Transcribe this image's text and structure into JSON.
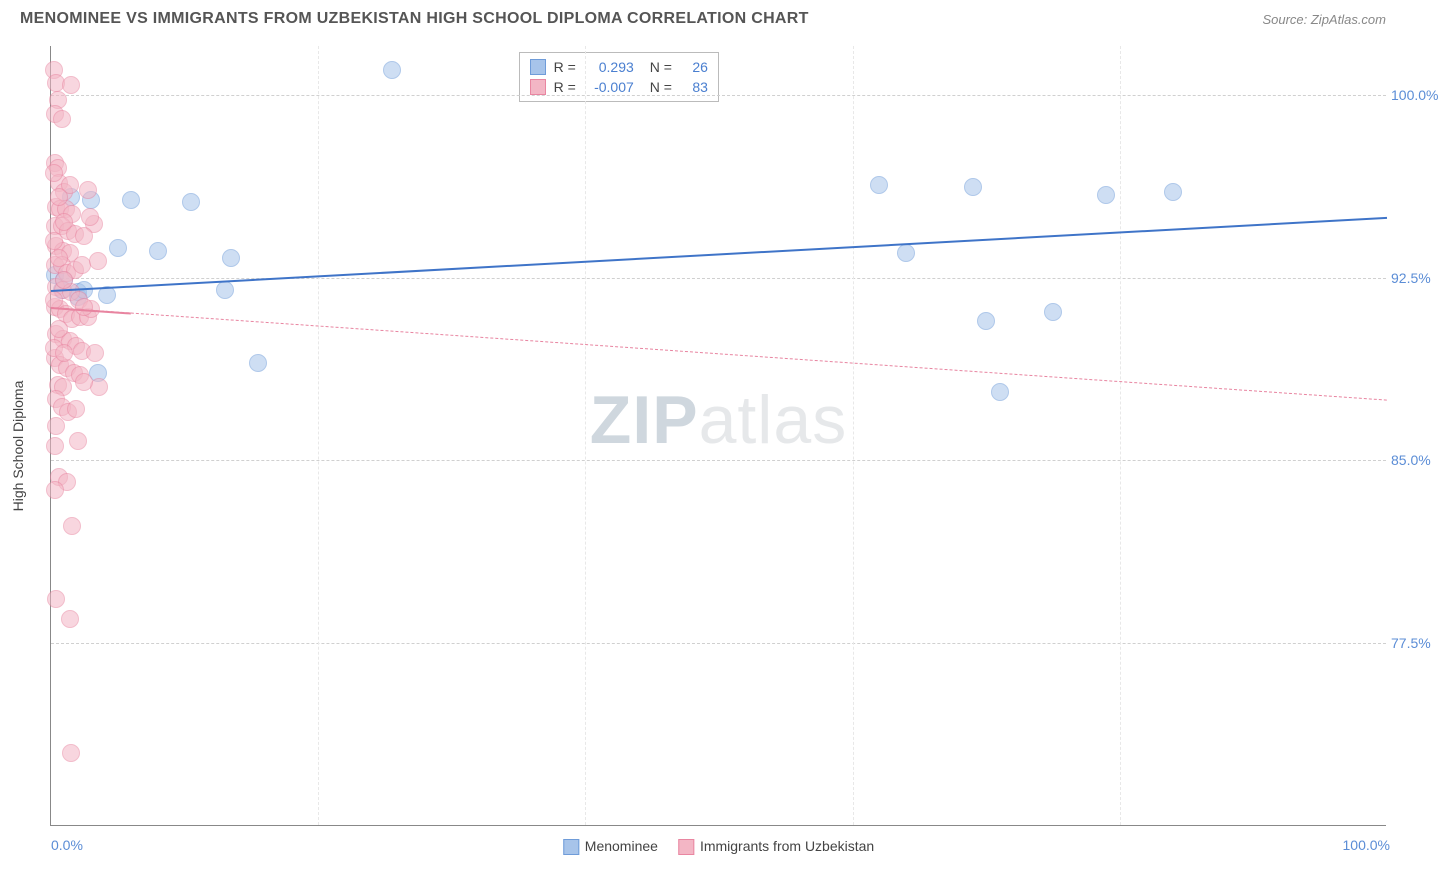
{
  "title": "MENOMINEE VS IMMIGRANTS FROM UZBEKISTAN HIGH SCHOOL DIPLOMA CORRELATION CHART",
  "source_prefix": "Source: ",
  "source_name": "ZipAtlas.com",
  "watermark_a": "ZIP",
  "watermark_b": "atlas",
  "chart": {
    "type": "scatter",
    "background_color": "#ffffff",
    "grid_color": "#d6d6d6",
    "xlim": [
      0,
      100
    ],
    "ylim": [
      70,
      102
    ],
    "yaxis_title": "High School Diploma",
    "yticks": [
      {
        "v": 77.5,
        "label": "77.5%"
      },
      {
        "v": 85.0,
        "label": "85.0%"
      },
      {
        "v": 92.5,
        "label": "92.5%"
      },
      {
        "v": 100.0,
        "label": "100.0%"
      }
    ],
    "xticks_minor": [
      20,
      40,
      60,
      80
    ],
    "xtick_left": {
      "v": 0,
      "label": "0.0%"
    },
    "xtick_right": {
      "v": 100,
      "label": "100.0%"
    },
    "tick_label_color": "#5b8dd6",
    "tick_fontsize": 14,
    "marker_radius": 9,
    "marker_opacity": 0.55,
    "marker_border_width": 1.2,
    "series": [
      {
        "name": "Menominee",
        "color_fill": "#a7c4ea",
        "color_stroke": "#6f9cd9",
        "R_label": "R =",
        "R": "0.293",
        "N_label": "N =",
        "N": "26",
        "trend": {
          "y_at_x0": 92.0,
          "y_at_x100": 95.0,
          "solid": true,
          "width": 2.5,
          "color": "#3f74c8"
        },
        "points": [
          [
            0.3,
            92.6
          ],
          [
            0.8,
            92.0
          ],
          [
            1.0,
            92.4
          ],
          [
            1.5,
            95.8
          ],
          [
            2.0,
            91.7
          ],
          [
            2.0,
            91.9
          ],
          [
            2.5,
            92.0
          ],
          [
            3.0,
            95.7
          ],
          [
            3.5,
            88.6
          ],
          [
            4.2,
            91.8
          ],
          [
            5.0,
            93.7
          ],
          [
            6.0,
            95.7
          ],
          [
            8.0,
            93.6
          ],
          [
            10.5,
            95.6
          ],
          [
            13.0,
            92.0
          ],
          [
            13.5,
            93.3
          ],
          [
            15.5,
            89.0
          ],
          [
            25.5,
            101.0
          ],
          [
            62.0,
            96.3
          ],
          [
            64.0,
            93.5
          ],
          [
            69.0,
            96.2
          ],
          [
            70.0,
            90.7
          ],
          [
            71.0,
            87.8
          ],
          [
            75.0,
            91.1
          ],
          [
            79.0,
            95.9
          ],
          [
            84.0,
            96.0
          ]
        ]
      },
      {
        "name": "Immigrants from Uzbekistan",
        "color_fill": "#f3b6c5",
        "color_stroke": "#e986a1",
        "R_label": "R =",
        "R": "-0.007",
        "N_label": "N =",
        "N": "83",
        "trend": {
          "y_at_x0": 91.3,
          "y_at_x100": 87.5,
          "solid": false,
          "width": 1.2,
          "color": "#e884a0"
        },
        "solid_segment": {
          "x_end": 6,
          "width": 2.2
        },
        "points": [
          [
            0.2,
            101.0
          ],
          [
            0.4,
            100.5
          ],
          [
            0.5,
            99.8
          ],
          [
            0.3,
            99.2
          ],
          [
            0.8,
            99.0
          ],
          [
            1.5,
            100.4
          ],
          [
            0.3,
            97.2
          ],
          [
            0.5,
            97.0
          ],
          [
            0.6,
            96.4
          ],
          [
            1.0,
            96.0
          ],
          [
            1.4,
            96.3
          ],
          [
            0.4,
            95.4
          ],
          [
            0.7,
            95.3
          ],
          [
            1.1,
            95.3
          ],
          [
            1.6,
            95.1
          ],
          [
            0.3,
            94.6
          ],
          [
            0.8,
            94.6
          ],
          [
            1.3,
            94.4
          ],
          [
            1.8,
            94.3
          ],
          [
            0.4,
            93.8
          ],
          [
            0.9,
            93.6
          ],
          [
            1.4,
            93.5
          ],
          [
            0.3,
            93.0
          ],
          [
            0.8,
            93.0
          ],
          [
            1.2,
            92.7
          ],
          [
            1.8,
            92.8
          ],
          [
            2.3,
            93.0
          ],
          [
            0.4,
            92.1
          ],
          [
            0.9,
            92.0
          ],
          [
            1.5,
            91.9
          ],
          [
            2.1,
            91.6
          ],
          [
            0.3,
            91.3
          ],
          [
            0.7,
            91.2
          ],
          [
            1.1,
            91.0
          ],
          [
            1.6,
            90.8
          ],
          [
            2.2,
            90.9
          ],
          [
            2.8,
            90.9
          ],
          [
            0.4,
            90.2
          ],
          [
            0.9,
            90.0
          ],
          [
            1.4,
            89.9
          ],
          [
            1.9,
            89.7
          ],
          [
            2.3,
            89.5
          ],
          [
            0.3,
            89.2
          ],
          [
            0.7,
            88.9
          ],
          [
            1.2,
            88.8
          ],
          [
            1.7,
            88.6
          ],
          [
            2.2,
            88.5
          ],
          [
            0.5,
            88.1
          ],
          [
            0.9,
            88.0
          ],
          [
            0.4,
            87.5
          ],
          [
            0.8,
            87.2
          ],
          [
            1.3,
            87.0
          ],
          [
            0.4,
            86.4
          ],
          [
            0.3,
            85.6
          ],
          [
            2.0,
            85.8
          ],
          [
            0.6,
            84.3
          ],
          [
            1.2,
            84.1
          ],
          [
            0.3,
            83.8
          ],
          [
            1.6,
            82.3
          ],
          [
            0.4,
            79.3
          ],
          [
            1.4,
            78.5
          ],
          [
            1.5,
            73.0
          ],
          [
            2.8,
            96.1
          ],
          [
            3.2,
            94.7
          ],
          [
            3.5,
            93.2
          ],
          [
            3.0,
            91.2
          ],
          [
            3.3,
            89.4
          ],
          [
            3.6,
            88.0
          ],
          [
            2.9,
            95.0
          ],
          [
            0.2,
            96.8
          ],
          [
            0.2,
            94.0
          ],
          [
            0.2,
            91.6
          ],
          [
            0.2,
            89.6
          ],
          [
            0.6,
            95.8
          ],
          [
            0.6,
            93.3
          ],
          [
            0.6,
            90.4
          ],
          [
            1.0,
            94.8
          ],
          [
            1.0,
            92.4
          ],
          [
            1.0,
            89.4
          ],
          [
            2.5,
            94.2
          ],
          [
            2.5,
            91.3
          ],
          [
            2.5,
            88.2
          ],
          [
            1.9,
            87.1
          ]
        ]
      }
    ],
    "legend_bottom": [
      {
        "label": "Menominee",
        "fill": "#a7c4ea",
        "stroke": "#6f9cd9"
      },
      {
        "label": "Immigrants from Uzbekistan",
        "fill": "#f3b6c5",
        "stroke": "#e986a1"
      }
    ]
  }
}
